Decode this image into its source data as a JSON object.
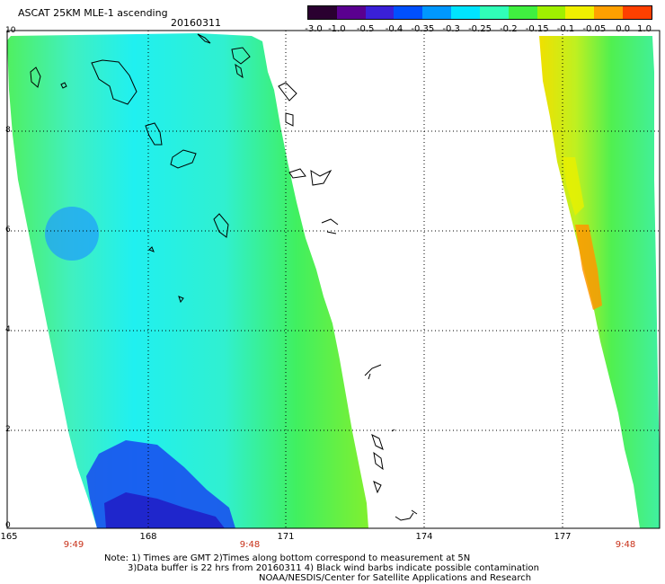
{
  "header": {
    "title": "ASCAT 25KM MLE-1 ascending",
    "date": "20160311"
  },
  "colorbar": {
    "labels": [
      "-3.0",
      "-1.0",
      "-0.5",
      "-0.4",
      "-0.35",
      "-0.3",
      "-0.25",
      "-0.2",
      "-0.15",
      "-0.1",
      "-0.05",
      "0.0",
      "1.0"
    ],
    "colors": [
      "#2a0030",
      "#5a0090",
      "#3a20d8",
      "#0050ff",
      "#0098ff",
      "#00e4ff",
      "#30ffb8",
      "#40f040",
      "#a0f000",
      "#f0f000",
      "#ffa000",
      "#ff4000"
    ]
  },
  "axes": {
    "x_ticks": [
      "165",
      "168",
      "171",
      "174",
      "177"
    ],
    "y_ticks": [
      "10",
      "8",
      "6",
      "4",
      "2",
      "0"
    ]
  },
  "pass_times": [
    "9:49",
    "9:48",
    "9:48"
  ],
  "notes": {
    "line1": "Note: 1) Times are GMT 2)Times along bottom correspond to measurement at 5N",
    "line2": "3)Data buffer is 22 hrs from 20160311 4) Black wind barbs indicate possible contamination",
    "line3": "NOAA/NESDIS/Center for Satellite Applications and Research"
  }
}
